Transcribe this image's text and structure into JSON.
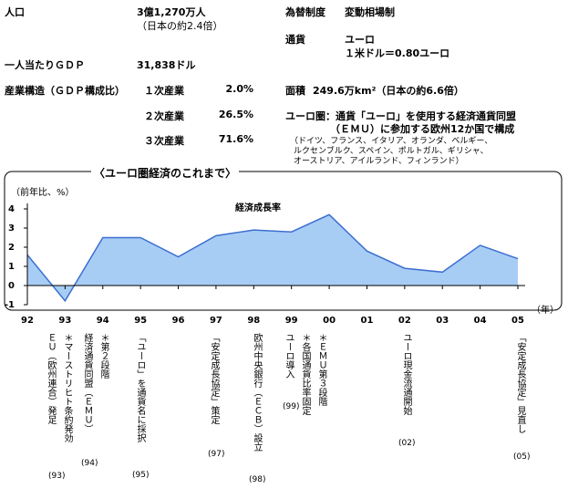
{
  "info": {
    "population": {
      "label": "人口",
      "value": "3億1,270万人",
      "note": "（日本の約2.4倍）"
    },
    "exchange": {
      "label": "為替制度",
      "value": "変動相場制"
    },
    "currency": {
      "label": "通貨",
      "value": "ユーロ",
      "note": "１米ドル＝0.80ユーロ"
    },
    "gdp_per_capita": {
      "label": "一人当たりＧＤＰ",
      "value": "31,838ドル"
    },
    "industry": {
      "label": "産業構造（ＧＤＰ構成比）",
      "rows": [
        [
          "１次産業",
          "2.0%"
        ],
        [
          "２次産業",
          "26.5%"
        ],
        [
          "３次産業",
          "71.6%"
        ]
      ]
    },
    "area": {
      "label": "面積",
      "value": "249.6万km²（日本の約6.6倍）"
    },
    "eurozone": {
      "lines": [
        "ユーロ圏：通貨「ユーロ」を使用する経済通貨同盟",
        "（ＥＭＵ）に参加する欧州12か国で構成"
      ],
      "members": [
        "（ドイツ、フランス、イタリア、オランダ、ベルギー、",
        "ルクセンブルク、スペイン、ポルトガル、ギリシャ、",
        "オーストリア、アイルランド、フィンランド）"
      ]
    }
  },
  "section_title": "〈ユーロ圏経済のこれまで〉",
  "chart_data": {
    "type": "area",
    "title": "経済成長率",
    "y_label": "（前年比、%）",
    "x_label": "（年）",
    "categories": [
      "92",
      "93",
      "94",
      "95",
      "96",
      "97",
      "98",
      "99",
      "00",
      "01",
      "02",
      "03",
      "04",
      "05"
    ],
    "values": [
      1.6,
      -0.8,
      2.5,
      2.5,
      1.5,
      2.6,
      2.9,
      2.8,
      3.7,
      1.8,
      0.9,
      0.7,
      2.1,
      1.4
    ],
    "color": "#a8cdf5",
    "line_color": "#3c6fd0",
    "ylim": [
      -1,
      4
    ],
    "yticks": [
      -1,
      0,
      1,
      2,
      3,
      4
    ]
  },
  "annotations": [
    {
      "lines": [
        "ＥＵ（欧州連合）発足",
        "＊マーストリヒト条約発効"
      ],
      "note": "(93)"
    },
    {
      "lines": [
        "経済通貨同盟（ＥＭＵ）",
        "＊第２段階"
      ],
      "note": "(94)"
    },
    {
      "lines": [
        "「ユーロ」を通貨名に採択"
      ],
      "note": "(95)"
    },
    {
      "lines": [
        "「安定成長協定」策定"
      ],
      "note": "(97)"
    },
    {
      "lines": [
        "欧州中央銀行（ＥＣＢ）設立"
      ],
      "note": "(98)"
    },
    {
      "lines": [
        "ユーロ導入"
      ],
      "note": "(99)"
    },
    {
      "lines": [
        "＊各国通貨比率固定",
        "＊ＥＭＵ第３段階"
      ]
    },
    {
      "lines": [
        "ユーロ現金流通開始"
      ],
      "note": "(02)"
    },
    {
      "lines": [
        "「安定成長協定」見直し"
      ],
      "note": "(05)"
    }
  ]
}
